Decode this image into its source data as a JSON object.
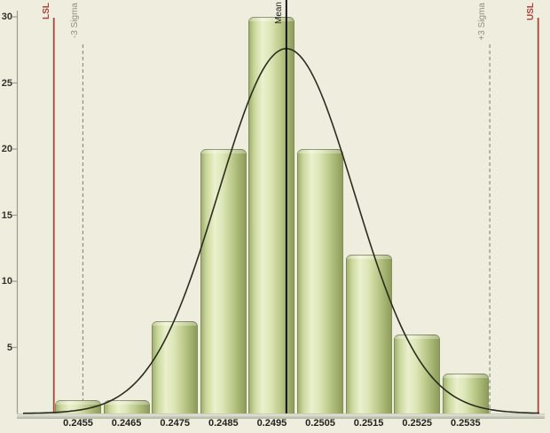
{
  "chart_data": {
    "type": "histogram",
    "title": "",
    "xlabel": "",
    "ylabel": "",
    "bin_centers": [
      0.2455,
      0.2465,
      0.2475,
      0.2485,
      0.2495,
      0.2505,
      0.2515,
      0.2525,
      0.2535
    ],
    "x_tick_labels": [
      "0.2455",
      "0.2465",
      "0.2475",
      "0.2485",
      "0.2495",
      "0.2505",
      "0.2515",
      "0.2525",
      "0.2535"
    ],
    "counts": [
      1,
      1,
      7,
      20,
      30,
      20,
      12,
      6,
      3
    ],
    "bin_width": 0.001,
    "y_ticks": [
      5,
      10,
      15,
      20,
      25,
      30
    ],
    "ylim": [
      0,
      30
    ],
    "grid": false,
    "legend": false,
    "normal_fit": {
      "mean": 0.2498,
      "sigma": 0.0014,
      "peak": 27.6
    },
    "spec_limits": {
      "lsl": 0.245,
      "usl": 0.255
    },
    "sigma_lines": {
      "minus3": 0.2456,
      "plus3": 0.254
    },
    "labels": {
      "lsl": "LSL",
      "usl": "USL",
      "mean": "Mean",
      "minus3sigma": "-3 Sigma",
      "plus3sigma": "+3 Sigma"
    },
    "colors": {
      "background": "#efeede",
      "spec_line": "#b04238",
      "spec_line_halo": "#e3f2de",
      "sigma_line": "#90907f",
      "mean_line": "#000000",
      "curve": "#2b2b20",
      "axis": "#9b9b8e",
      "bar_light": "#eaf0cd",
      "bar_dark": "#8d9d59",
      "floor": "#b1b3a3"
    }
  }
}
